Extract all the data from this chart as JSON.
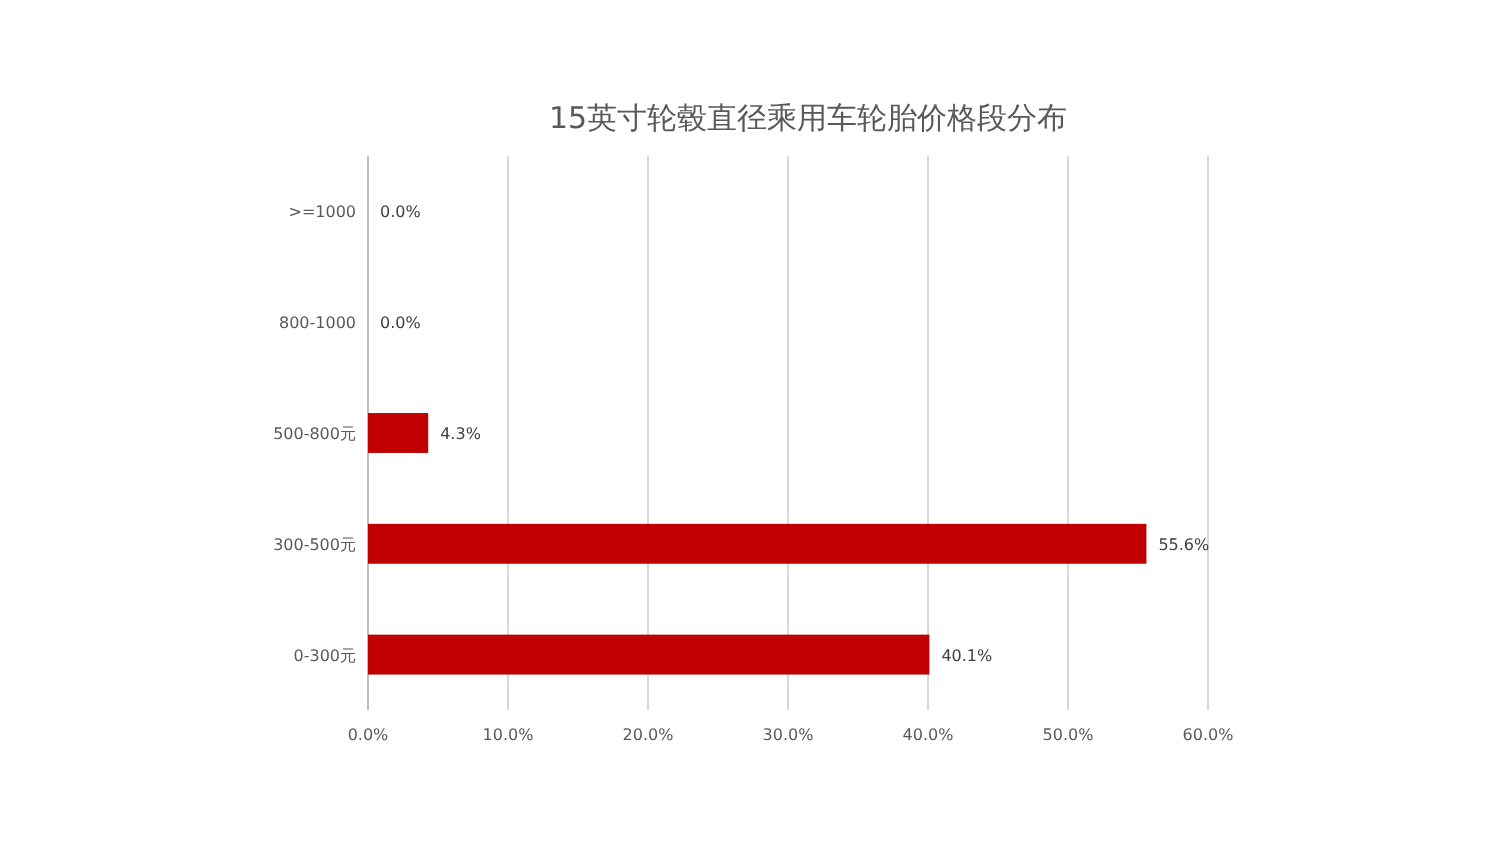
{
  "chart_data": {
    "type": "bar",
    "orientation": "horizontal",
    "title": "15英寸轮毂直径乘用车轮胎价格段分布",
    "categories": [
      ">=1000",
      "800-1000",
      "500-800元",
      "300-500元",
      "0-300元"
    ],
    "values": [
      0.0,
      0.0,
      4.3,
      55.6,
      40.1
    ],
    "value_labels": [
      "0.0%",
      "0.0%",
      "4.3%",
      "55.6%",
      "40.1%"
    ],
    "color": "#c00000",
    "xlim": [
      0,
      60
    ],
    "xticks": [
      {
        "value": 0,
        "label": "0.0%"
      },
      {
        "value": 10,
        "label": "10.0%"
      },
      {
        "value": 20,
        "label": "20.0%"
      },
      {
        "value": 30,
        "label": "30.0%"
      },
      {
        "value": 40,
        "label": "40.0%"
      },
      {
        "value": 50,
        "label": "50.0%"
      },
      {
        "value": 60,
        "label": "60.0%"
      }
    ],
    "grid": "x"
  }
}
